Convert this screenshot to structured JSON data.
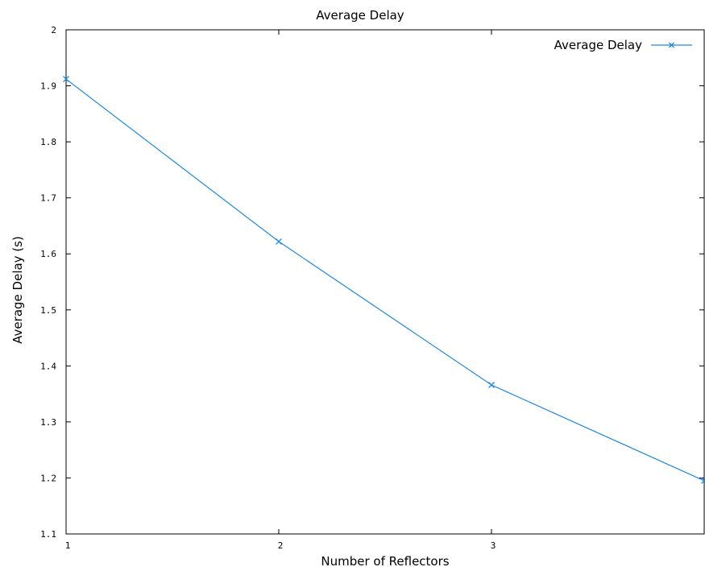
{
  "chart_data": {
    "type": "line",
    "title": "Average Delay",
    "xlabel": "Number of Reflectors",
    "ylabel": "Average Delay  (s)",
    "xlim": [
      1,
      4
    ],
    "ylim": [
      1.1,
      2.0
    ],
    "x_ticks": [
      1,
      2,
      3
    ],
    "y_ticks": [
      1.1,
      1.2,
      1.3,
      1.4,
      1.5,
      1.6,
      1.7,
      1.8,
      1.9,
      2.0
    ],
    "x_tick_labels": [
      "1",
      "2",
      "3"
    ],
    "y_tick_labels": [
      "1.1",
      "1.2",
      "1.3",
      "1.4",
      "1.5",
      "1.6",
      "1.7",
      "1.8",
      "1.9",
      "2"
    ],
    "grid": false,
    "legend_position": "top-right",
    "series": [
      {
        "name": "Average Delay",
        "color": "#1e88e5",
        "marker": "x",
        "x": [
          1,
          2,
          3,
          4
        ],
        "y": [
          1.912,
          1.622,
          1.366,
          1.195
        ]
      }
    ]
  }
}
